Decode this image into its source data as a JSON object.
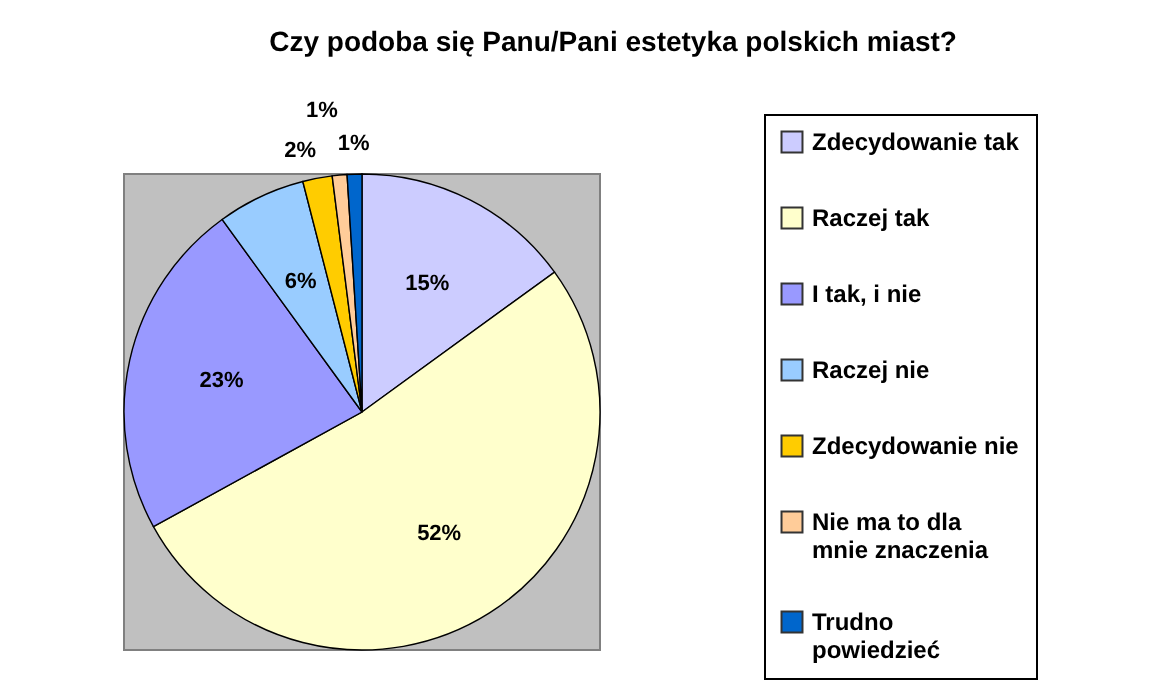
{
  "chart_data": {
    "type": "pie",
    "title": "Czy podoba się Panu/Pani estetyka polskich miast?",
    "categories": [
      "Zdecydowanie tak",
      "Raczej tak",
      "I tak, i nie",
      "Raczej nie",
      "Zdecydowanie nie",
      "Nie ma to dla mnie znaczenia",
      "Trudno powiedzieć"
    ],
    "values": [
      15,
      52,
      23,
      6,
      2,
      1,
      1
    ],
    "colors": [
      "#ccccff",
      "#ffffcc",
      "#9999ff",
      "#99ccff",
      "#ffcc00",
      "#ffcc99",
      "#0066cc"
    ],
    "value_labels": [
      "15%",
      "52%",
      "23%",
      "6%",
      "2%",
      "1%",
      "1%"
    ],
    "legend": "right"
  }
}
